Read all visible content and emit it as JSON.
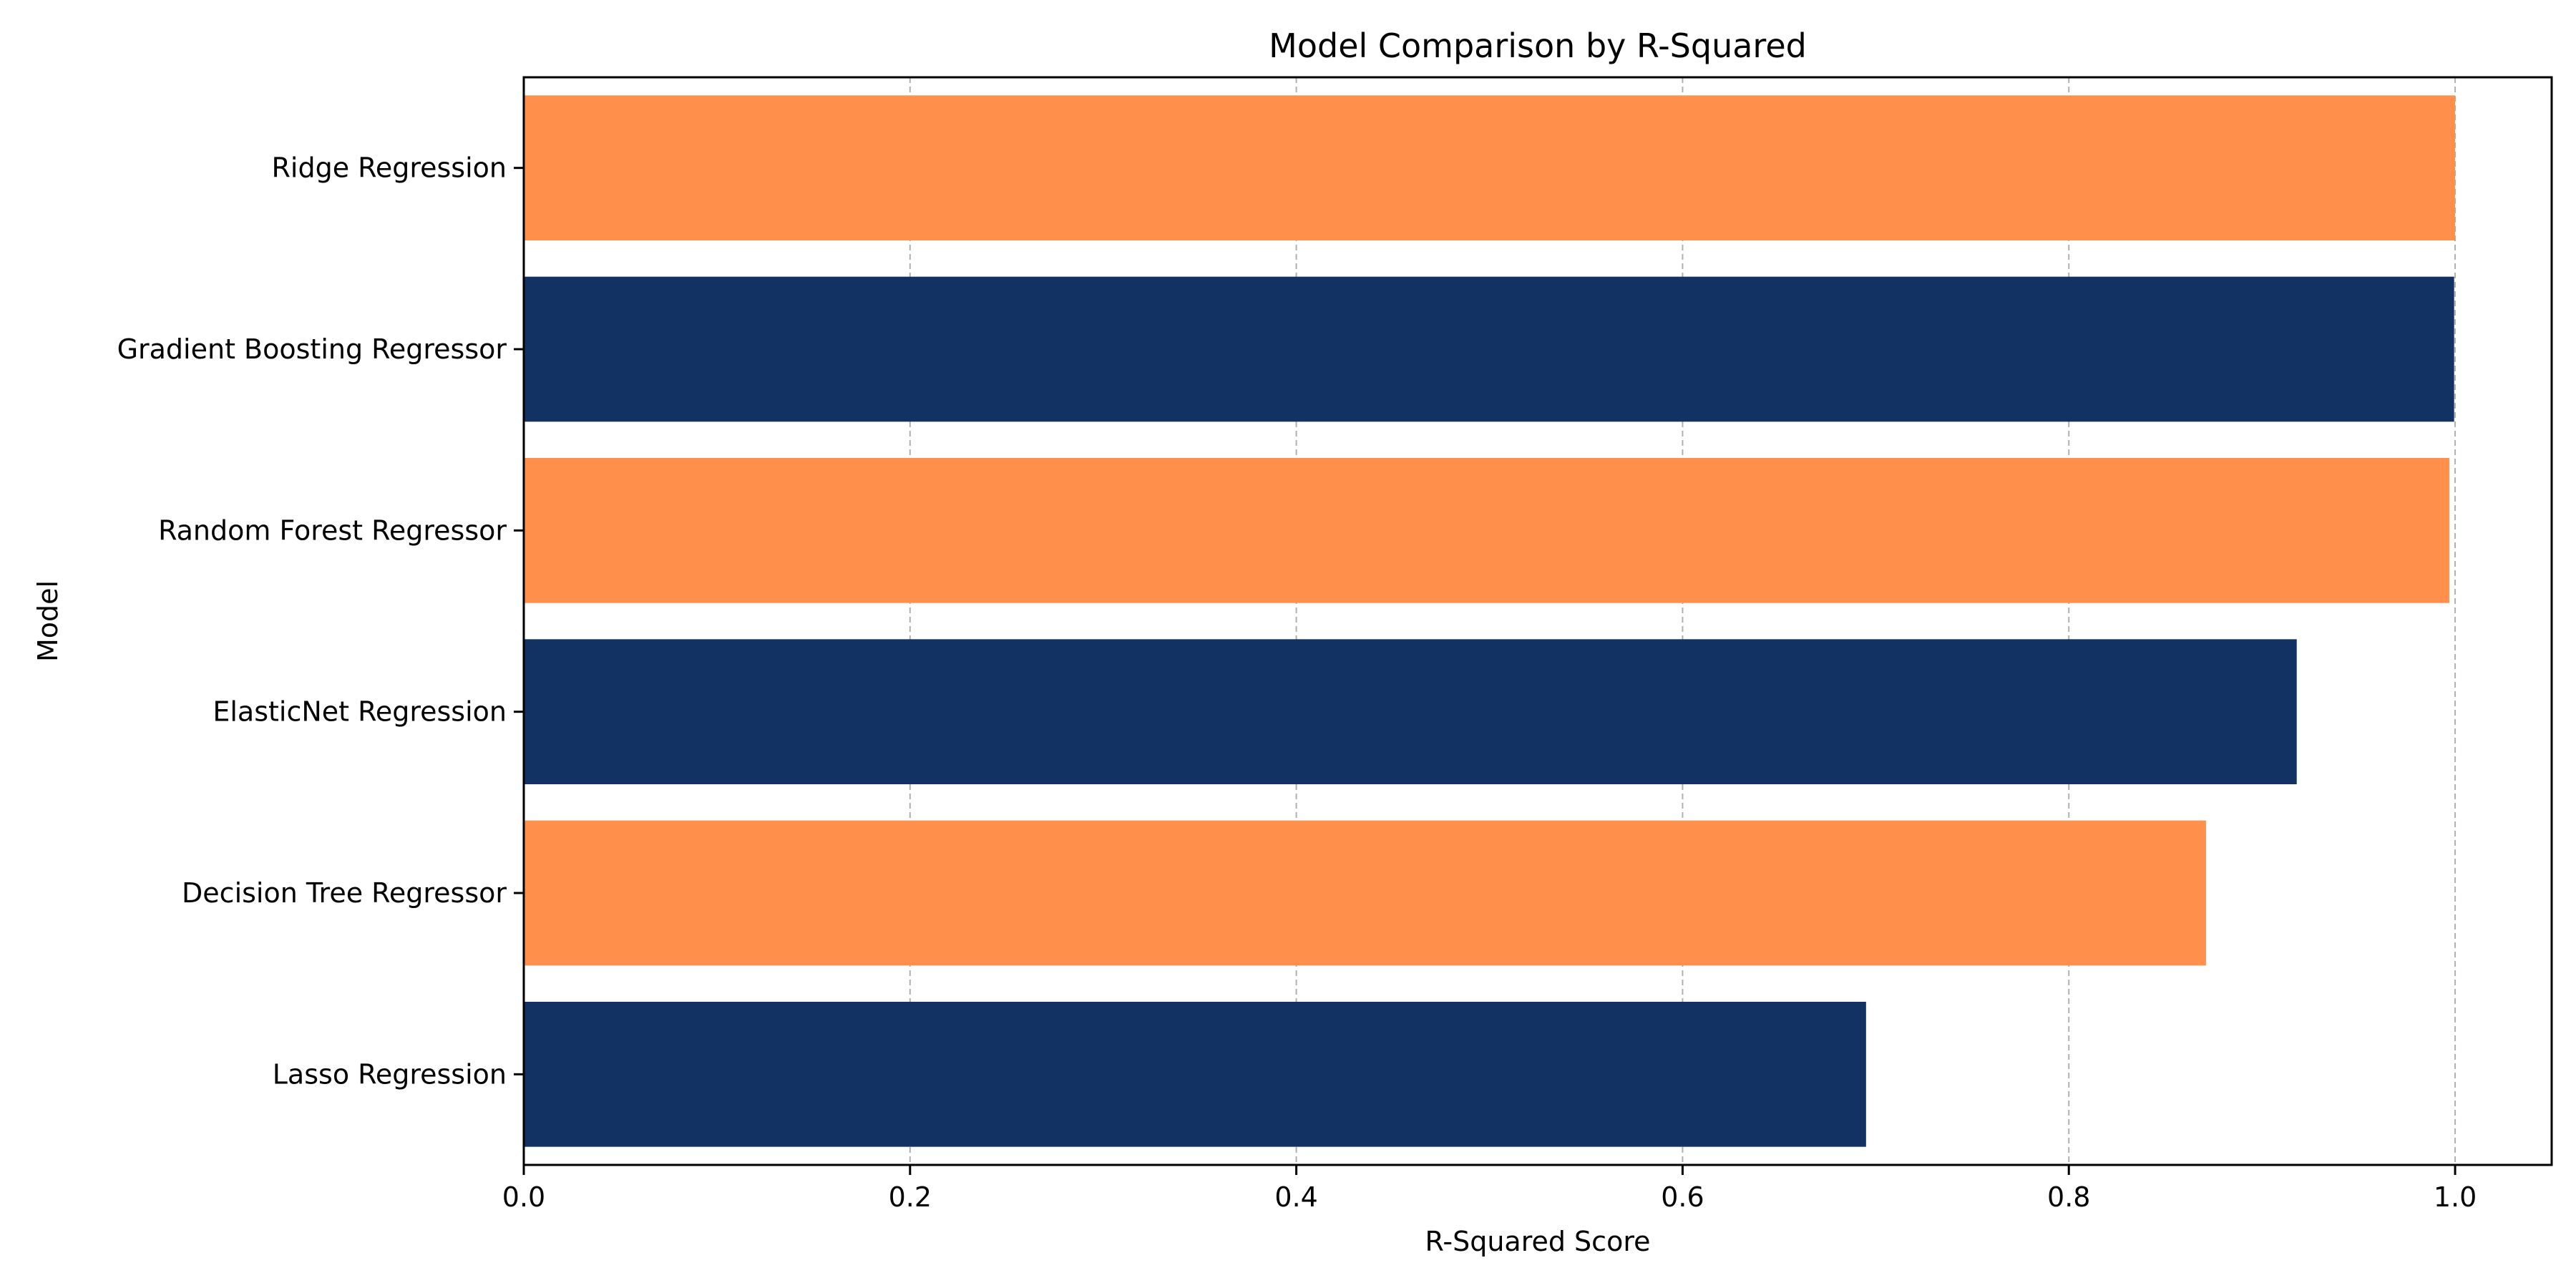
{
  "chart_data": {
    "type": "bar",
    "orientation": "horizontal",
    "title": "Model Comparison by R-Squared",
    "xlabel": "R-Squared Score",
    "ylabel": "Model",
    "categories": [
      "Lasso Regression",
      "Decision Tree Regressor",
      "ElasticNet Regression",
      "Random Forest Regressor",
      "Gradient Boosting Regressor",
      "Ridge Regression"
    ],
    "values": [
      0.695,
      0.871,
      0.918,
      0.997,
      0.9995,
      1.0
    ],
    "bar_colors": [
      "#123264",
      "#ff8f4a",
      "#123264",
      "#ff8f4a",
      "#123264",
      "#ff8f4a"
    ],
    "xlim": [
      0,
      1.05
    ],
    "xticks": [
      0.0,
      0.2,
      0.4,
      0.6,
      0.8,
      1.0
    ],
    "xtick_labels": [
      "0.0",
      "0.2",
      "0.4",
      "0.6",
      "0.8",
      "1.0"
    ],
    "grid": "x-axis dashed",
    "legend": "none"
  }
}
